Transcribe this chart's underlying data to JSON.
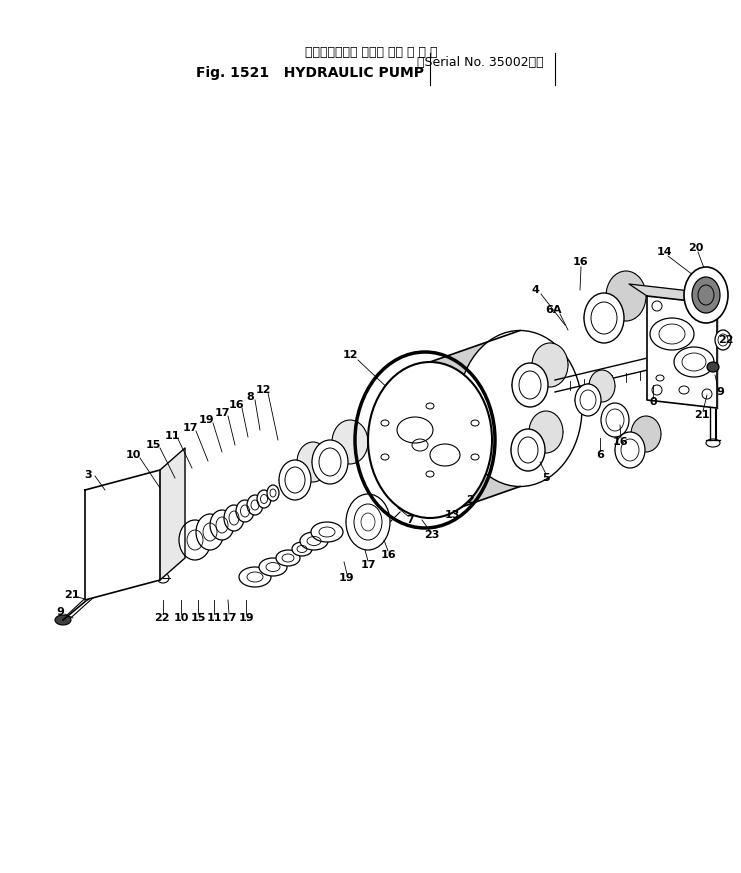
{
  "title_line1": "ハイドロリック ポンプ （適 用 号 機",
  "title_line2_a": "Fig. 1521   HYDRAULIC PUMP",
  "title_line2_b": "（Serial No. 35002～）",
  "bg_color": "#ffffff",
  "line_color": "#000000",
  "fig_width": 7.41,
  "fig_height": 8.73,
  "dpi": 100
}
